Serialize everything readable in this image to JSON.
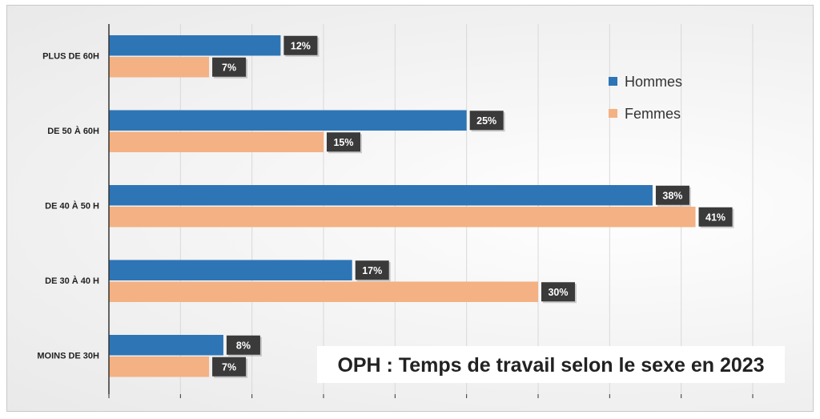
{
  "chart_data": {
    "type": "bar",
    "orientation": "horizontal",
    "title": "OPH : Temps de travail selon le sexe en 2023",
    "categories": [
      "PLUS DE 60H",
      "DE 50 À 60H",
      "DE 40 À 50 H",
      "DE 30 À 40 H",
      "MOINS DE 30H"
    ],
    "series": [
      {
        "name": "Hommes",
        "color": "#2e75b6",
        "values": [
          12,
          25,
          38,
          17,
          8
        ],
        "labels": [
          "12%",
          "25%",
          "38%",
          "17%",
          "8%"
        ]
      },
      {
        "name": "Femmes",
        "color": "#f4b183",
        "values": [
          7,
          15,
          41,
          30,
          7
        ],
        "labels": [
          "7%",
          "15%",
          "41%",
          "30%",
          "7%"
        ]
      }
    ],
    "xlim": [
      0,
      45
    ],
    "grid": true,
    "legend_position": "top-right",
    "data_label_background": "#3a3a3a"
  }
}
